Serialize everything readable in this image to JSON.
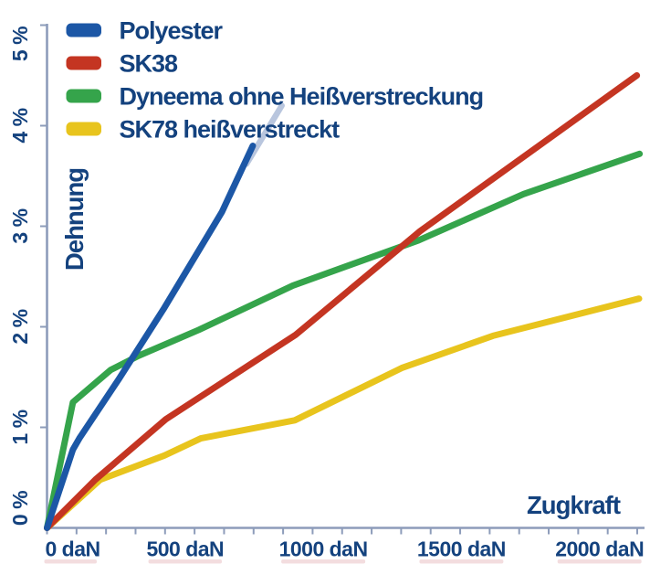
{
  "colors": {
    "polyester": "#1c57a6",
    "polyester_fade": "#b9c6de",
    "sk38": "#c43522",
    "dyneema": "#35a44b",
    "sk78": "#e8c41d",
    "text_navy": "#14427e",
    "axis": "#8d9cba",
    "background": "#ffffff",
    "label_artifact_pink": "#eeced2"
  },
  "legend": {
    "position": "top-left"
  },
  "chart_data": {
    "type": "line",
    "title": "",
    "xlabel": "Zugkraft",
    "ylabel": "Dehnung",
    "xlim": [
      0,
      2160
    ],
    "ylim": [
      0,
      5
    ],
    "grid": false,
    "x_axis": {
      "unit": "daN",
      "minor_tick_count": 21,
      "minor_tick_step_daN": 100,
      "ticks": [
        {
          "value": 0,
          "label": "0 daN"
        },
        {
          "value": 500,
          "label": "500 daN"
        },
        {
          "value": 1000,
          "label": "1000 daN"
        },
        {
          "value": 1500,
          "label": "1500 daN"
        },
        {
          "value": 2000,
          "label": "2000 daN"
        }
      ]
    },
    "y_axis": {
      "unit": "%",
      "ticks": [
        {
          "value": 0,
          "label": "0 %"
        },
        {
          "value": 1,
          "label": "1 %"
        },
        {
          "value": 2,
          "label": "2 %"
        },
        {
          "value": 3,
          "label": "3 %"
        },
        {
          "value": 4,
          "label": "4 %"
        },
        {
          "value": 5,
          "label": "5 %"
        }
      ]
    },
    "series": [
      {
        "id": "polyester",
        "name": "Polyester",
        "color": "#1c57a6",
        "points": [
          [
            0,
            0
          ],
          [
            94,
            0.78
          ],
          [
            117,
            0.89
          ],
          [
            260,
            1.48
          ],
          [
            425,
            2.19
          ],
          [
            633,
            3.14
          ],
          [
            745,
            3.8
          ]
        ],
        "fade_extension": {
          "color": "#b9c6de",
          "points": [
            [
              722,
              3.62
            ],
            [
              850,
              4.2
            ]
          ]
        }
      },
      {
        "id": "sk38",
        "name": "SK38",
        "color": "#c43522",
        "points": [
          [
            0,
            0
          ],
          [
            175,
            0.48
          ],
          [
            430,
            1.08
          ],
          [
            900,
            1.92
          ],
          [
            1350,
            2.95
          ],
          [
            2135,
            4.5
          ]
        ]
      },
      {
        "id": "dyneema-ohne-heissverstreckung",
        "name": "Dyneema ohne Heißverstreckung",
        "color": "#35a44b",
        "points": [
          [
            0,
            0
          ],
          [
            94,
            1.25
          ],
          [
            230,
            1.57
          ],
          [
            330,
            1.71
          ],
          [
            550,
            1.97
          ],
          [
            890,
            2.41
          ],
          [
            1345,
            2.86
          ],
          [
            1725,
            3.32
          ],
          [
            2145,
            3.72
          ]
        ]
      },
      {
        "id": "sk78-heissverstreckt",
        "name": "SK78 heißverstreckt",
        "color": "#e8c41d",
        "points": [
          [
            0,
            0
          ],
          [
            193,
            0.48
          ],
          [
            425,
            0.72
          ],
          [
            557,
            0.89
          ],
          [
            897,
            1.07
          ],
          [
            1284,
            1.59
          ],
          [
            1614,
            1.91
          ],
          [
            2143,
            2.28
          ]
        ]
      }
    ]
  }
}
